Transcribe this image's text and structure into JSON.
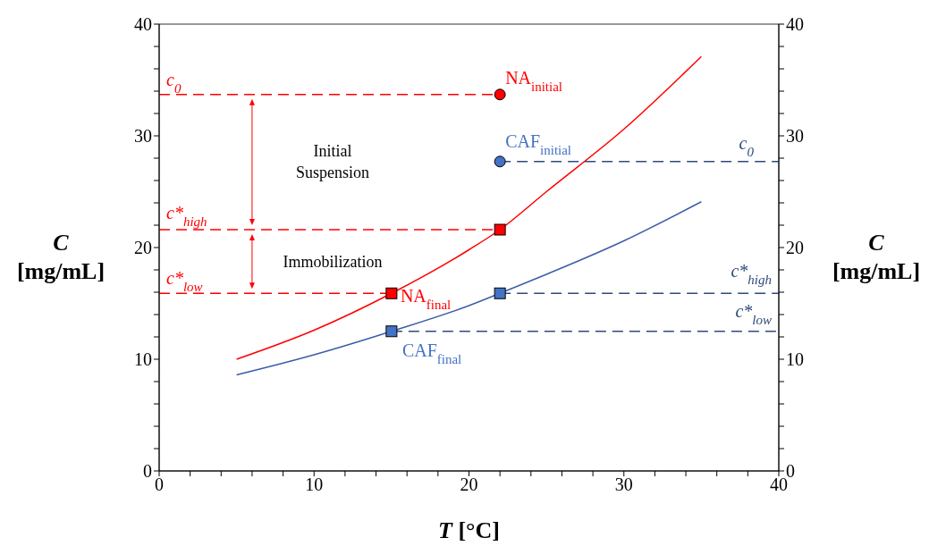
{
  "chart_data": {
    "type": "line",
    "xlabel": "T [°C]",
    "ylabel": "C [mg/mL]",
    "y2label": "C [mg/mL]",
    "xlim": [
      0,
      40
    ],
    "ylim": [
      0,
      40
    ],
    "y2lim": [
      0,
      40
    ],
    "xticks": [
      0,
      {
        "value": 2,
        "label": null
      },
      {
        "value": 4,
        "label": null
      },
      {
        "value": 6,
        "label": null
      },
      {
        "value": 8,
        "label": null
      },
      10,
      {
        "value": 12,
        "label": null
      },
      {
        "value": 14,
        "label": null
      },
      {
        "value": 16,
        "label": null
      },
      {
        "value": 18,
        "label": null
      },
      20,
      {
        "value": 22,
        "label": null
      },
      {
        "value": 24,
        "label": null
      },
      {
        "value": 26,
        "label": null
      },
      {
        "value": 28,
        "label": null
      },
      30,
      {
        "value": 32,
        "label": null
      },
      {
        "value": 34,
        "label": null
      },
      {
        "value": 36,
        "label": null
      },
      {
        "value": 38,
        "label": null
      },
      40
    ],
    "yticks": [
      0,
      {
        "value": 2,
        "label": null
      },
      {
        "value": 4,
        "label": null
      },
      {
        "value": 6,
        "label": null
      },
      {
        "value": 8,
        "label": null
      },
      10,
      {
        "value": 12,
        "label": null
      },
      {
        "value": 14,
        "label": null
      },
      {
        "value": 16,
        "label": null
      },
      {
        "value": 18,
        "label": null
      },
      20,
      {
        "value": 22,
        "label": null
      },
      {
        "value": 24,
        "label": null
      },
      {
        "value": 26,
        "label": null
      },
      {
        "value": 28,
        "label": null
      },
      30,
      {
        "value": 32,
        "label": null
      },
      {
        "value": 34,
        "label": null
      },
      {
        "value": 36,
        "label": null
      },
      {
        "value": 38,
        "label": null
      },
      40
    ],
    "y2ticks": [
      0,
      {
        "value": 2,
        "label": null
      },
      {
        "value": 4,
        "label": null
      },
      {
        "value": 6,
        "label": null
      },
      {
        "value": 8,
        "label": null
      },
      10,
      {
        "value": 12,
        "label": null
      },
      {
        "value": 14,
        "label": null
      },
      {
        "value": 16,
        "label": null
      },
      {
        "value": 18,
        "label": null
      },
      20,
      {
        "value": 22,
        "label": null
      },
      {
        "value": 24,
        "label": null
      },
      {
        "value": 26,
        "label": null
      },
      {
        "value": 28,
        "label": null
      },
      30,
      {
        "value": 32,
        "label": null
      },
      {
        "value": 34,
        "label": null
      },
      {
        "value": 36,
        "label": null
      },
      {
        "value": 38,
        "label": null
      },
      40
    ],
    "series": [
      {
        "color": "#ff0000",
        "x": [
          5,
          10,
          15,
          20,
          22,
          25,
          30,
          35
        ],
        "values": [
          10.0,
          12.6,
          15.9,
          19.8,
          21.6,
          25.0,
          30.6,
          37.1
        ]
      },
      {
        "color": "#3a5ea8",
        "x": [
          5,
          10,
          15,
          20,
          22,
          25,
          30,
          35
        ],
        "values": [
          8.6,
          10.4,
          12.5,
          14.8,
          15.9,
          17.6,
          20.6,
          24.1
        ]
      },
      {
        "type": "line",
        "line_style": "dashed",
        "color": "#ff0000",
        "name": "c$_{0}$",
        "x": [
          0,
          22
        ],
        "values": [
          33.7,
          33.7
        ]
      },
      {
        "type": "line",
        "line_style": "dashed",
        "color": "#ff0000",
        "name": "c*$_{high}$",
        "x": [
          0,
          22
        ],
        "values": [
          21.6,
          21.6
        ]
      },
      {
        "type": "line",
        "line_style": "dashed",
        "color": "#ff0000",
        "name": "c*$_{low}$",
        "x": [
          0,
          15
        ],
        "values": [
          15.9,
          15.9
        ]
      },
      {
        "type": "line",
        "line_style": "dashed",
        "color": "#2f4a7a",
        "name": "c$_{0}$",
        "x": [
          22,
          40
        ],
        "values": [
          27.7,
          27.7
        ]
      },
      {
        "type": "line",
        "line_style": "dashed",
        "color": "#2f4a7a",
        "name": "c*$_{high}$",
        "x": [
          22,
          40
        ],
        "values": [
          15.9,
          15.9
        ]
      },
      {
        "type": "line",
        "line_style": "dashed",
        "color": "#2f4a7a",
        "name": "c*$_{low}$",
        "x": [
          15,
          40
        ],
        "values": [
          12.5,
          12.5
        ]
      },
      {
        "type": "scatter",
        "marker": "circle",
        "color": "#ff0000",
        "name": "NA$_{initial}$",
        "x": [
          22
        ],
        "values": [
          33.7
        ]
      },
      {
        "type": "scatter",
        "marker": "circle",
        "color": "#4472c4",
        "name": "CAF$_{initial}$",
        "x": [
          22
        ],
        "values": [
          27.7
        ]
      },
      {
        "type": "scatter",
        "marker": "square",
        "color": "#ff0000",
        "x": [
          22
        ],
        "values": [
          21.6
        ]
      },
      {
        "type": "scatter",
        "marker": "square",
        "color": "#ff0000",
        "name": "NA$_{final}$",
        "x": [
          15
        ],
        "values": [
          15.9
        ]
      },
      {
        "type": "scatter",
        "marker": "square",
        "color": "#4472c4",
        "x": [
          22
        ],
        "values": [
          15.9
        ]
      },
      {
        "type": "scatter",
        "marker": "square",
        "color": "#4472c4",
        "name": "CAF$_{final}$",
        "x": [
          15
        ],
        "values": [
          12.5
        ]
      }
    ],
    "annotations": [
      "Initial Suspension",
      "Immobilization"
    ]
  }
}
